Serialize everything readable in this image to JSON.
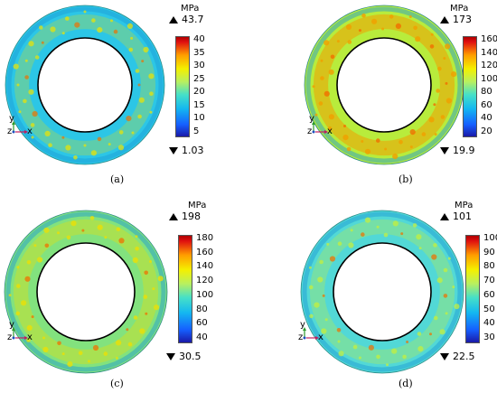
{
  "panels": [
    {
      "label": "(a)",
      "unit": "MPa",
      "max": "43.7",
      "min": "1.03",
      "ticks": [
        "40",
        "35",
        "30",
        "25",
        "20",
        "15",
        "10",
        "5"
      ],
      "ring": {
        "ring_color": "#2cc6e6",
        "hot_color": "#f0e400",
        "hot_intensity": 0.25
      }
    },
    {
      "label": "(b)",
      "unit": "MPa",
      "max": "173",
      "min": "19.9",
      "ticks": [
        "160",
        "140",
        "120",
        "100",
        "80",
        "60",
        "40",
        "20"
      ],
      "ring": {
        "ring_color": "#b8ec3c",
        "hot_color": "#f0a000",
        "hot_intensity": 0.55
      }
    },
    {
      "label": "(c)",
      "unit": "MPa",
      "max": "198",
      "min": "30.5",
      "ticks": [
        "180",
        "160",
        "140",
        "120",
        "100",
        "80",
        "60",
        "40"
      ],
      "ring": {
        "ring_color": "#82e27e",
        "hot_color": "#f0e000",
        "hot_intensity": 0.35
      }
    },
    {
      "label": "(d)",
      "unit": "MPa",
      "max": "101",
      "min": "22.5",
      "ticks": [
        "100",
        "90",
        "80",
        "70",
        "60",
        "50",
        "40",
        "30"
      ],
      "ring": {
        "ring_color": "#52d8d6",
        "hot_color": "#c8f03a",
        "hot_intensity": 0.3
      }
    }
  ],
  "axes": {
    "y": "y",
    "z": "z",
    "x": "x"
  }
}
